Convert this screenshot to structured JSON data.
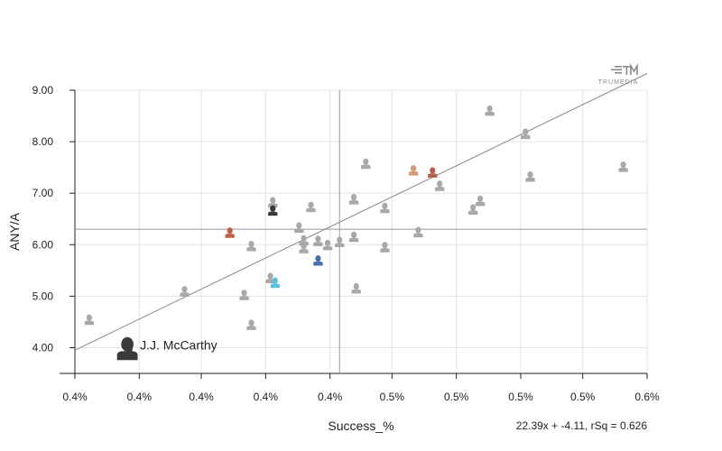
{
  "chart_data": {
    "type": "scatter",
    "xlabel": "Success_%",
    "ylabel": "ANY/A",
    "x_range": [
      0.36,
      0.6
    ],
    "y_range": [
      3.5,
      9.0
    ],
    "x_tick_values": [
      0.36,
      0.387,
      0.413,
      0.44,
      0.467,
      0.493,
      0.52,
      0.547,
      0.573,
      0.6
    ],
    "x_tick_labels": [
      "0.4%",
      "0.4%",
      "0.4%",
      "0.4%",
      "0.4%",
      "0.5%",
      "0.5%",
      "0.5%",
      "0.5%",
      "0.6%"
    ],
    "y_tick_values": [
      4.0,
      5.0,
      6.0,
      7.0,
      8.0,
      9.0
    ],
    "y_tick_labels": [
      "4.00",
      "5.00",
      "6.00",
      "7.00",
      "8.00",
      "9.00"
    ],
    "grid": true,
    "mean_x": 0.471,
    "mean_y": 6.3,
    "regression": {
      "slope": 22.39,
      "intercept": -4.11,
      "text": "22.39x + -4.11, rSq = 0.626"
    },
    "highlight": {
      "name": "J.J. McCarthy",
      "x": 0.382,
      "y": 3.95
    },
    "points": [
      {
        "x": 0.366,
        "y": 4.53,
        "c": "#a8a8a8"
      },
      {
        "x": 0.383,
        "y": 3.92,
        "c": "#3a3a3a"
      },
      {
        "x": 0.406,
        "y": 5.08,
        "c": "#a8a8a8"
      },
      {
        "x": 0.425,
        "y": 6.22,
        "c": "#c0604a"
      },
      {
        "x": 0.431,
        "y": 5.01,
        "c": "#a8a8a8"
      },
      {
        "x": 0.434,
        "y": 5.96,
        "c": "#a8a8a8"
      },
      {
        "x": 0.434,
        "y": 4.43,
        "c": "#a8a8a8"
      },
      {
        "x": 0.442,
        "y": 5.34,
        "c": "#a8a8a8"
      },
      {
        "x": 0.444,
        "y": 5.25,
        "c": "#5bc0de"
      },
      {
        "x": 0.443,
        "y": 6.81,
        "c": "#a8a8a8"
      },
      {
        "x": 0.443,
        "y": 6.65,
        "c": "#3a3a3a"
      },
      {
        "x": 0.454,
        "y": 6.32,
        "c": "#a8a8a8"
      },
      {
        "x": 0.456,
        "y": 6.07,
        "c": "#a8a8a8"
      },
      {
        "x": 0.456,
        "y": 5.92,
        "c": "#a8a8a8"
      },
      {
        "x": 0.459,
        "y": 6.72,
        "c": "#a8a8a8"
      },
      {
        "x": 0.462,
        "y": 6.06,
        "c": "#a8a8a8"
      },
      {
        "x": 0.462,
        "y": 5.68,
        "c": "#4a6fb0"
      },
      {
        "x": 0.466,
        "y": 5.98,
        "c": "#a8a8a8"
      },
      {
        "x": 0.471,
        "y": 6.04,
        "c": "#a8a8a8"
      },
      {
        "x": 0.477,
        "y": 6.87,
        "c": "#a8a8a8"
      },
      {
        "x": 0.477,
        "y": 6.14,
        "c": "#a8a8a8"
      },
      {
        "x": 0.478,
        "y": 5.14,
        "c": "#a8a8a8"
      },
      {
        "x": 0.482,
        "y": 7.56,
        "c": "#a8a8a8"
      },
      {
        "x": 0.49,
        "y": 6.7,
        "c": "#a8a8a8"
      },
      {
        "x": 0.49,
        "y": 5.94,
        "c": "#a8a8a8"
      },
      {
        "x": 0.502,
        "y": 7.43,
        "c": "#d49a7a"
      },
      {
        "x": 0.504,
        "y": 6.23,
        "c": "#a8a8a8"
      },
      {
        "x": 0.51,
        "y": 7.39,
        "c": "#b06050"
      },
      {
        "x": 0.513,
        "y": 7.13,
        "c": "#a8a8a8"
      },
      {
        "x": 0.527,
        "y": 6.67,
        "c": "#a8a8a8"
      },
      {
        "x": 0.53,
        "y": 6.84,
        "c": "#a8a8a8"
      },
      {
        "x": 0.534,
        "y": 8.59,
        "c": "#a8a8a8"
      },
      {
        "x": 0.549,
        "y": 8.14,
        "c": "#a8a8a8"
      },
      {
        "x": 0.551,
        "y": 7.31,
        "c": "#a8a8a8"
      },
      {
        "x": 0.59,
        "y": 7.5,
        "c": "#a8a8a8"
      }
    ]
  },
  "branding": {
    "logo_text": "TRUMEDIA"
  }
}
